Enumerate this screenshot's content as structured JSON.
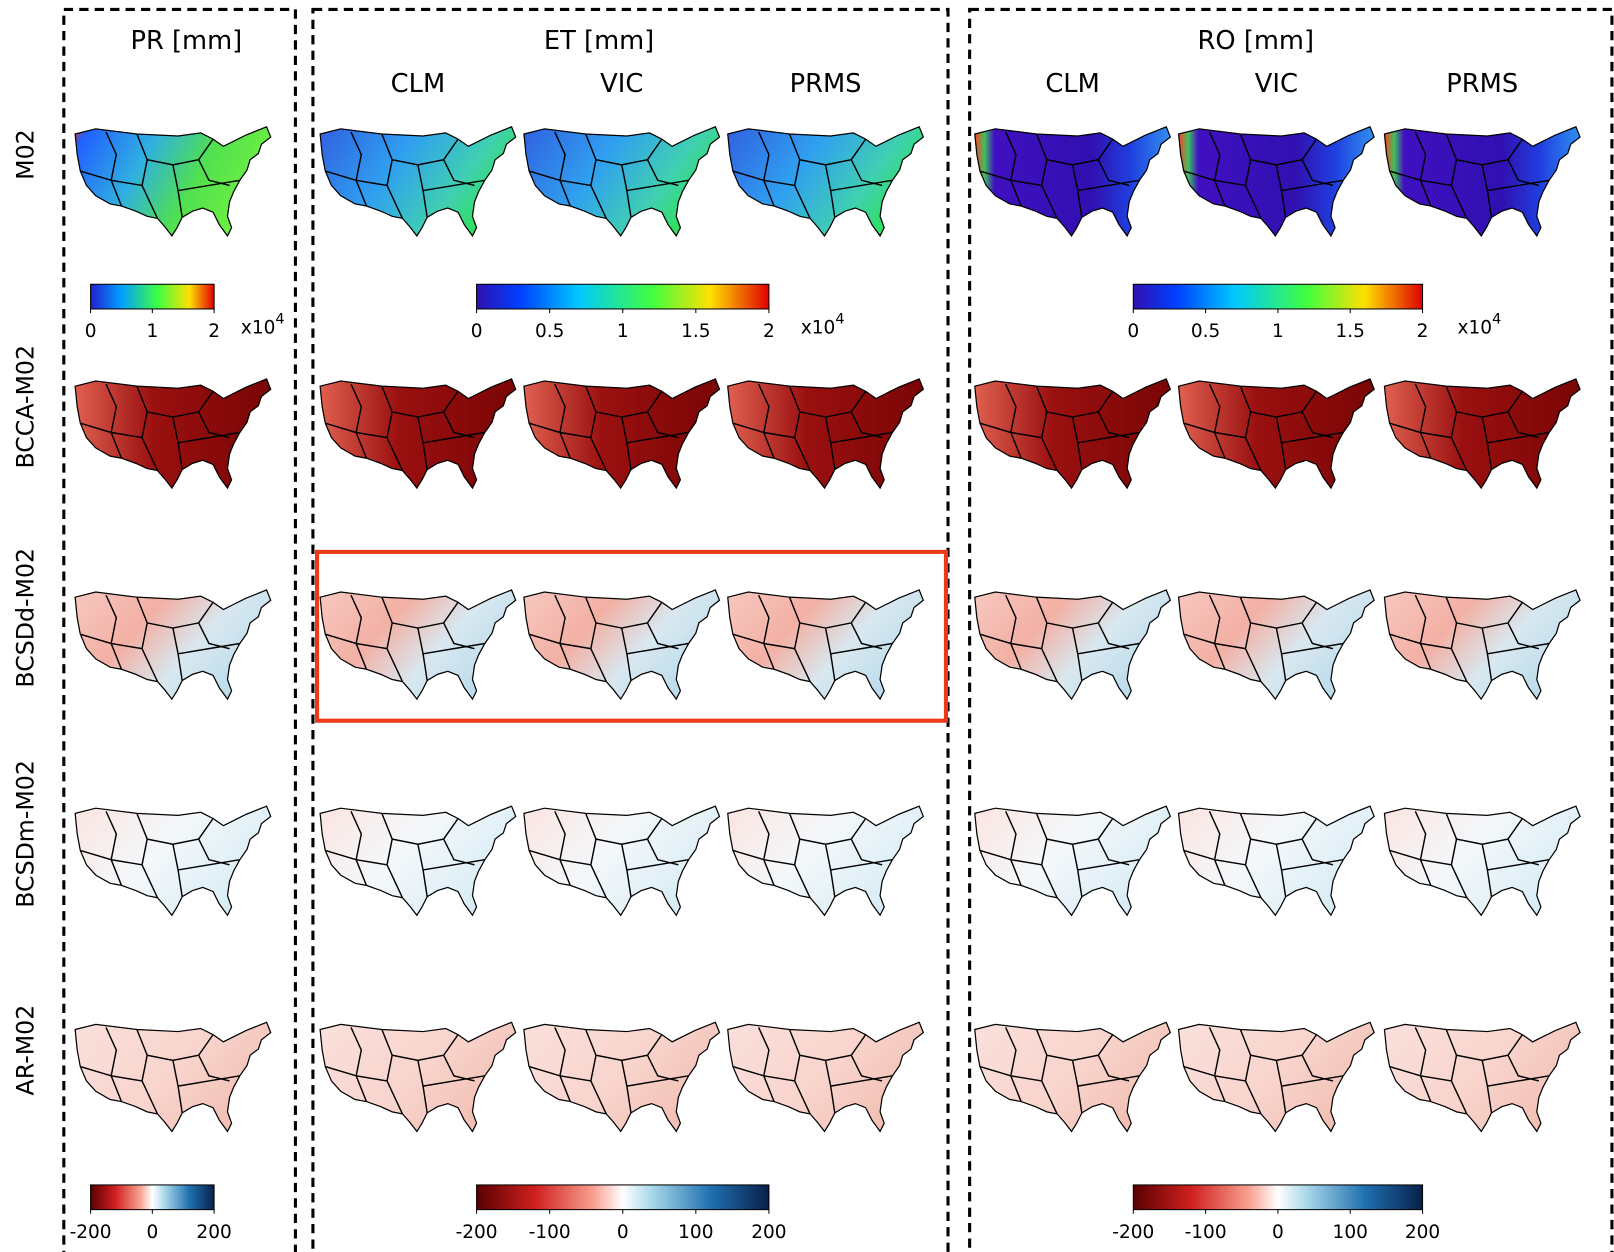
{
  "panels": [
    {
      "title": "PR [mm]",
      "colorbars": {
        "absolute": {
          "range": [
            0,
            2
          ],
          "ticks": [
            0,
            1,
            2
          ],
          "multiplier": "x10",
          "exponent": "4"
        },
        "difference": {
          "range": [
            -200,
            200
          ],
          "ticks": [
            -200,
            0,
            200
          ]
        }
      }
    },
    {
      "title": "ET [mm]",
      "columns": [
        "CLM",
        "VIC",
        "PRMS"
      ],
      "colorbars": {
        "absolute": {
          "range": [
            0,
            2
          ],
          "ticks": [
            0,
            0.5,
            1,
            1.5,
            2
          ],
          "multiplier": "x10",
          "exponent": "4"
        },
        "difference": {
          "range": [
            -200,
            200
          ],
          "ticks": [
            -200,
            -100,
            0,
            100,
            200
          ]
        }
      }
    },
    {
      "title": "RO [mm]",
      "columns": [
        "CLM",
        "VIC",
        "PRMS"
      ],
      "colorbars": {
        "absolute": {
          "range": [
            0,
            2
          ],
          "ticks": [
            0,
            0.5,
            1,
            1.5,
            2
          ],
          "multiplier": "x10",
          "exponent": "4"
        },
        "difference": {
          "range": [
            -200,
            200
          ],
          "ticks": [
            -200,
            -100,
            0,
            100,
            200
          ]
        }
      }
    }
  ],
  "rows": [
    "M02",
    "BCCA-M02",
    "BCSDd-M02",
    "BCSDm-M02",
    "AR-M02"
  ]
}
